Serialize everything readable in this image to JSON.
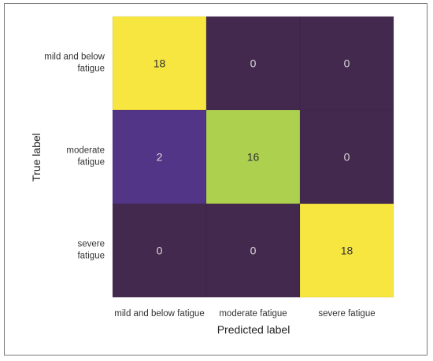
{
  "chart_data": {
    "type": "heatmap",
    "title": "",
    "xlabel": "Predicted label",
    "ylabel": "True label",
    "x_categories": [
      "mild and below fatigue",
      "moderate fatigue",
      "severe fatigue"
    ],
    "y_categories": [
      [
        "mild and below",
        "fatigue"
      ],
      [
        "moderate",
        "fatigue"
      ],
      [
        "severe",
        "fatigue"
      ]
    ],
    "values": [
      [
        18,
        0,
        0
      ],
      [
        2,
        16,
        0
      ],
      [
        0,
        0,
        18
      ]
    ],
    "value_range": [
      0,
      18
    ],
    "colormap": "viridis",
    "colors": {
      "low": "#44294f",
      "mid_low": "#533587",
      "high": "#aed04f",
      "max": "#f7e63f",
      "text_dark_bg": "#d9d9d9",
      "text_light_bg": "#333333"
    }
  }
}
